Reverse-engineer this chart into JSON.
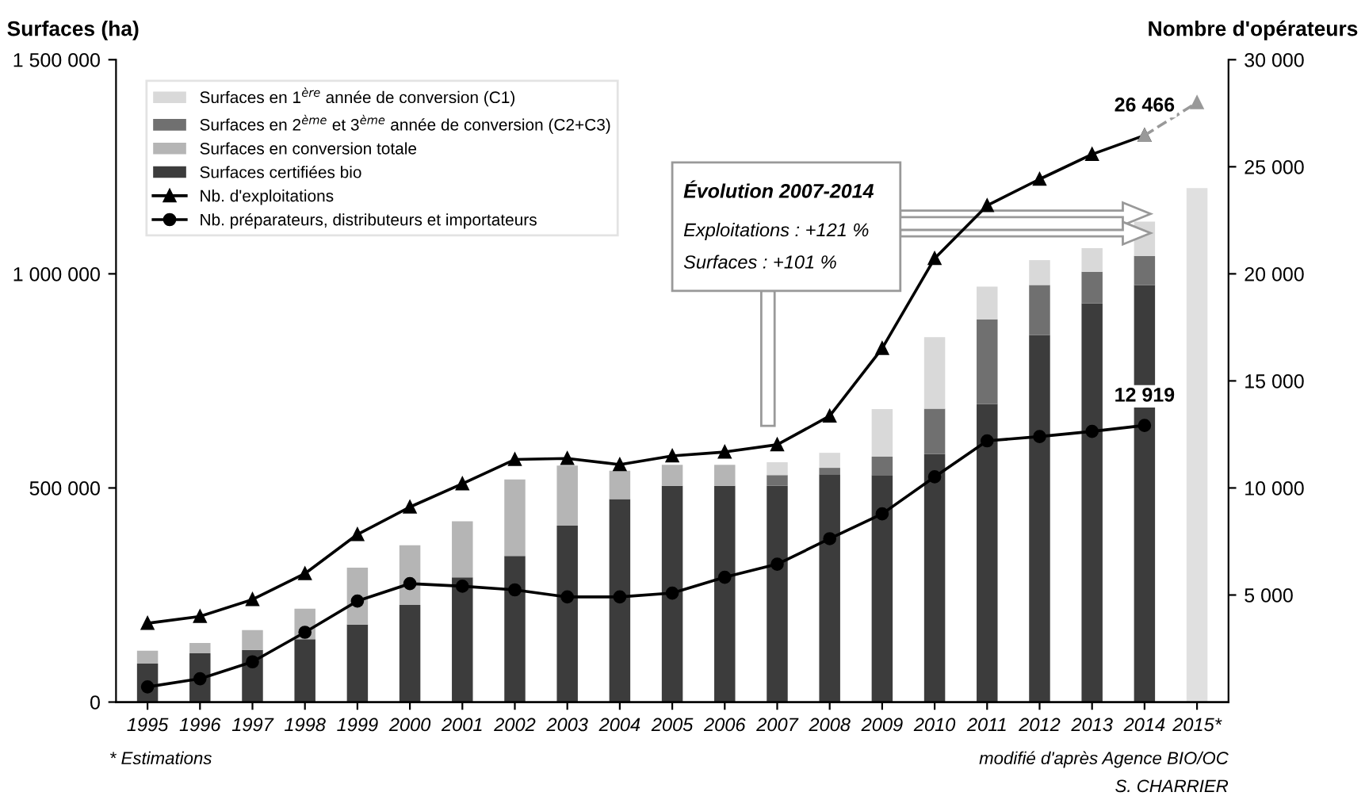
{
  "chart_data": {
    "type": "bar",
    "stacked": true,
    "legend": "top left",
    "grid": false,
    "ylabel": "Surfaces (ha)",
    "y2label": "Nombre d'opérateurs",
    "categories": [
      "1995",
      "1996",
      "1997",
      "1998",
      "1999",
      "2000",
      "2001",
      "2002",
      "2003",
      "2004",
      "2005",
      "2006",
      "2007",
      "2008",
      "2009",
      "2010",
      "2011",
      "2012",
      "2013",
      "2014",
      "2015*"
    ],
    "ylim": [
      0,
      1500000
    ],
    "yticks": [
      {
        "value": 0,
        "label": "0"
      },
      {
        "value": 500000,
        "label": "500 000"
      },
      {
        "value": 1000000,
        "label": "1 000 000"
      },
      {
        "value": 1500000,
        "label": "1 500 000"
      }
    ],
    "y2lim": [
      0,
      30000
    ],
    "y2ticks": [
      {
        "value": 5000,
        "label": "5 000"
      },
      {
        "value": 10000,
        "label": "10 000"
      },
      {
        "value": 15000,
        "label": "15 000"
      },
      {
        "value": 20000,
        "label": "20 000"
      },
      {
        "value": 25000,
        "label": "25 000"
      },
      {
        "value": 30000,
        "label": "30 000"
      }
    ],
    "series": [
      {
        "name": "Surfaces certifiées bio",
        "color": "#3c3c3c",
        "values": [
          90000,
          114000,
          122000,
          147000,
          181000,
          227000,
          291000,
          341000,
          412000,
          474000,
          505000,
          505000,
          505000,
          532000,
          530000,
          579000,
          696000,
          857000,
          931000,
          974000,
          null
        ]
      },
      {
        "name": "Surfaces en conversion totale",
        "color": "#b5b5b5",
        "values": [
          30000,
          24000,
          46000,
          71000,
          133000,
          139000,
          131000,
          179000,
          140000,
          66000,
          49000,
          49000,
          null,
          null,
          null,
          null,
          null,
          null,
          null,
          null,
          null
        ]
      },
      {
        "name": "Surfaces en 2$^{ème}$ et 3$^{ème}$ année de conversion (C2+C3)",
        "color": "#707070",
        "values": [
          null,
          null,
          null,
          null,
          null,
          null,
          null,
          null,
          null,
          null,
          null,
          null,
          25000,
          15000,
          43000,
          106000,
          198000,
          117000,
          74000,
          68000,
          null
        ]
      },
      {
        "name": "Surfaces en 1$^{ère}$ année de conversion (C1)",
        "color": "#d9d9d9",
        "values": [
          null,
          null,
          null,
          null,
          null,
          null,
          null,
          null,
          null,
          null,
          null,
          null,
          30000,
          35000,
          111000,
          167000,
          76000,
          58000,
          55000,
          80000,
          null
        ]
      },
      {
        "color": "#e0e0e0",
        "values": [
          null,
          null,
          null,
          null,
          null,
          null,
          null,
          null,
          null,
          null,
          null,
          null,
          null,
          null,
          null,
          null,
          null,
          null,
          null,
          null,
          1200000
        ]
      },
      {
        "name": "Nb. d'exploitations",
        "type": "line",
        "axis": "y2",
        "color": "#000000",
        "marker": "triangle",
        "line_style": "solid",
        "values": [
          3680,
          4000,
          4790,
          6000,
          7830,
          9110,
          10200,
          11330,
          11380,
          11090,
          11500,
          11680,
          12020,
          13360,
          16520,
          20720,
          23190,
          24420,
          25580,
          26466,
          null
        ],
        "value_labels": [
          null,
          null,
          null,
          null,
          null,
          null,
          null,
          null,
          null,
          null,
          null,
          null,
          null,
          null,
          null,
          null,
          null,
          null,
          null,
          "26 466",
          null
        ]
      },
      {
        "name": "Nb. préparateurs, distributeurs et importateurs",
        "type": "line",
        "axis": "y2",
        "color": "#000000",
        "marker": "circle",
        "line_style": "solid",
        "values": [
          710,
          1090,
          1880,
          3260,
          4720,
          5530,
          5410,
          5240,
          4910,
          4910,
          5090,
          5830,
          6440,
          7630,
          8790,
          10520,
          12200,
          12400,
          12640,
          12919,
          null
        ],
        "value_labels": [
          null,
          null,
          null,
          null,
          null,
          null,
          null,
          null,
          null,
          null,
          null,
          null,
          null,
          null,
          null,
          null,
          null,
          null,
          null,
          "12 919",
          null
        ]
      },
      {
        "type": "line",
        "axis": "y2",
        "color": "#999999",
        "marker": "triangle",
        "line_style": "dashed",
        "values": [
          null,
          null,
          null,
          null,
          null,
          null,
          null,
          null,
          null,
          null,
          null,
          null,
          null,
          null,
          null,
          null,
          null,
          null,
          null,
          26466,
          28000
        ]
      }
    ],
    "annotations": [
      "Évolution 2007-2014",
      "Exploitations : +121 %",
      "Surfaces : +101 %",
      "* Estimations",
      "modifié d'après Agence BIO/OC",
      "S. CHARRIER"
    ]
  }
}
